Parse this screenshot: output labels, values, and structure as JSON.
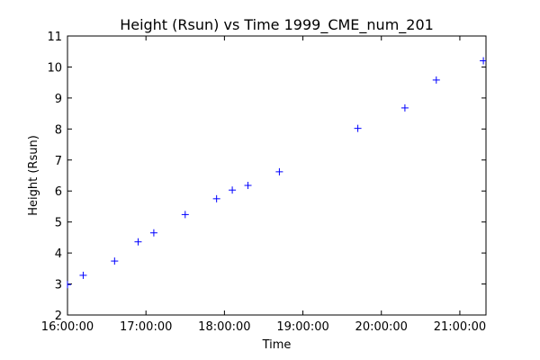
{
  "chart_data": {
    "type": "scatter",
    "title": "Height (Rsun) vs Time 1999_CME_num_201",
    "xlabel": "Time",
    "ylabel": "Height (Rsun)",
    "xlim": [
      "16:00:00",
      "21:20:00"
    ],
    "ylim": [
      2,
      11
    ],
    "x_ticks": [
      "16:00:00",
      "17:00:00",
      "18:00:00",
      "19:00:00",
      "20:00:00",
      "21:00:00"
    ],
    "y_ticks": [
      "2",
      "3",
      "4",
      "5",
      "6",
      "7",
      "8",
      "9",
      "10",
      "11"
    ],
    "grid": false,
    "marker": "+",
    "color": "#0000ff",
    "series": [
      {
        "x": [
          "16:00:00",
          "16:12:00",
          "16:36:00",
          "16:54:00",
          "17:06:00",
          "17:30:00",
          "17:54:00",
          "18:06:00",
          "18:18:00",
          "18:42:00",
          "19:42:00",
          "20:18:00",
          "20:42:00",
          "21:18:00"
        ],
        "y": [
          2.98,
          3.28,
          3.74,
          4.36,
          4.65,
          5.24,
          5.75,
          6.03,
          6.18,
          6.62,
          8.02,
          8.68,
          9.58,
          10.2
        ]
      }
    ]
  }
}
